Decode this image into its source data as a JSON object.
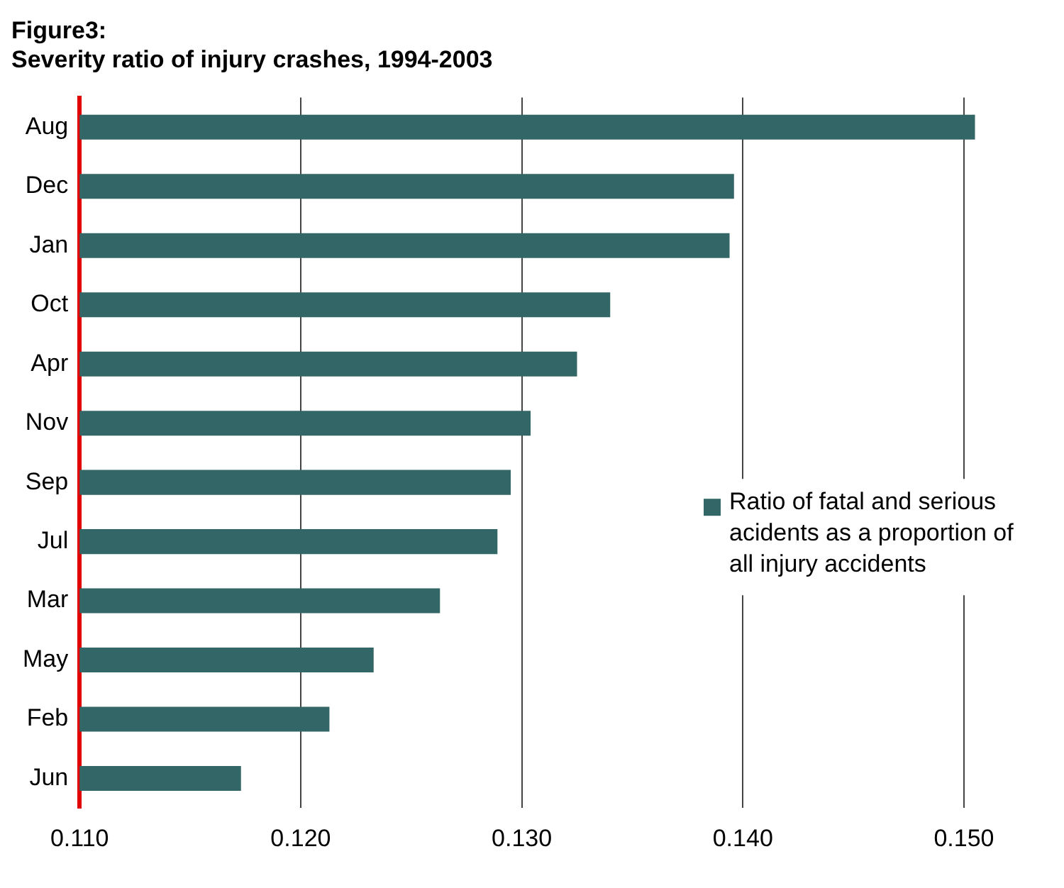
{
  "chart_data": {
    "type": "bar",
    "orientation": "horizontal",
    "title": "Figure3:\nSeverity ratio of injury crashes, 1994-2003",
    "categories": [
      "Aug",
      "Dec",
      "Jan",
      "Oct",
      "Apr",
      "Nov",
      "Sep",
      "Jul",
      "Mar",
      "May",
      "Feb",
      "Jun"
    ],
    "series": [
      {
        "name": "Ratio of fatal and serious acidents as a proportion of all injury accidents",
        "color": "#336666",
        "values": [
          0.1505,
          0.1396,
          0.1394,
          0.134,
          0.1325,
          0.1304,
          0.1295,
          0.1289,
          0.1263,
          0.1233,
          0.1213,
          0.1173
        ]
      }
    ],
    "xlim": [
      0.11,
      0.1535
    ],
    "xticks": [
      {
        "value": 0.11,
        "label": "0.110"
      },
      {
        "value": 0.12,
        "label": "0.120"
      },
      {
        "value": 0.13,
        "label": "0.130"
      },
      {
        "value": 0.14,
        "label": "0.140"
      },
      {
        "value": 0.15,
        "label": "0.150"
      }
    ],
    "grid": "x",
    "legend": "bottom right"
  }
}
